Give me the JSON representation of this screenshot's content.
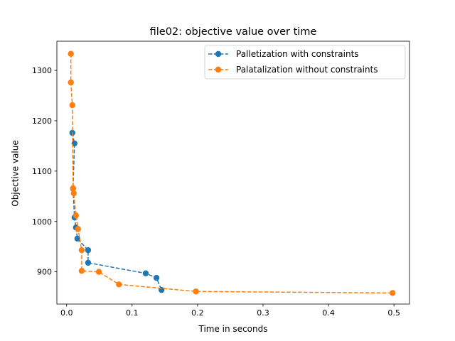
{
  "chart_data": {
    "type": "line",
    "title": "file02: objective value over time",
    "xlabel": "Time in seconds",
    "ylabel": "Objective value",
    "xlim": [
      -0.0149,
      0.5237
    ],
    "ylim": [
      836,
      1358
    ],
    "xticks": [
      0.0,
      0.1,
      0.2,
      0.3,
      0.4,
      0.5
    ],
    "xtick_labels": [
      "0.0",
      "0.1",
      "0.2",
      "0.3",
      "0.4",
      "0.5"
    ],
    "yticks": [
      900,
      1000,
      1100,
      1200,
      1300
    ],
    "ytick_labels": [
      "900",
      "1000",
      "1100",
      "1200",
      "1300"
    ],
    "grid": false,
    "legend_position": "top-right",
    "series": [
      {
        "name": "Palletization with constraints",
        "color": "#1f77b4",
        "linestyle": "dashed",
        "marker": "circle",
        "x": [
          0.0087,
          0.012,
          0.0098,
          0.012,
          0.0142,
          0.0164,
          0.0328,
          0.0328,
          0.1208,
          0.1372,
          0.1449
        ],
        "y": [
          1176,
          1155,
          1065,
          1008,
          988,
          966,
          943,
          918,
          897,
          888,
          864
        ]
      },
      {
        "name": "Palatalization without constraints",
        "color": "#ff7f0e",
        "linestyle": "dashed",
        "marker": "circle",
        "x": [
          0.0065,
          0.0065,
          0.0087,
          0.0098,
          0.0109,
          0.0142,
          0.0175,
          0.023,
          0.023,
          0.0492,
          0.0799,
          0.1974,
          0.4979
        ],
        "y": [
          1333,
          1276,
          1231,
          1066,
          1056,
          1012,
          985,
          943,
          902,
          900,
          875,
          861,
          858
        ]
      }
    ]
  }
}
